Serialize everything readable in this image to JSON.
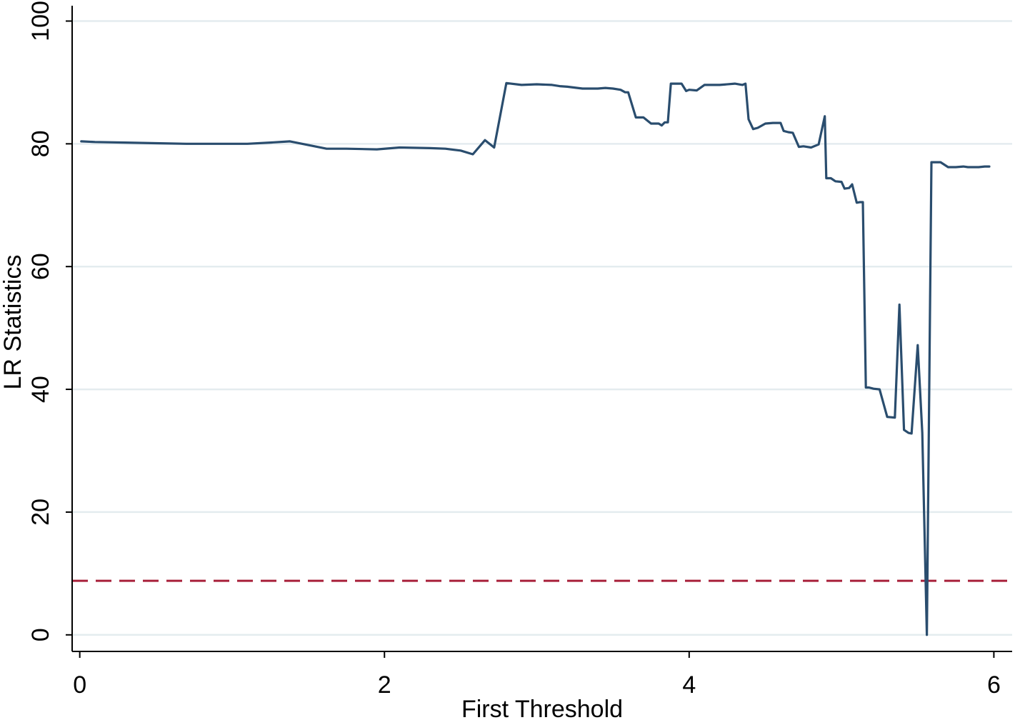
{
  "chart_data": {
    "type": "line",
    "title": "",
    "xlabel": "First Threshold",
    "ylabel": "LR Statistics",
    "xlim": [
      -0.05,
      6.12
    ],
    "ylim": [
      -2.7,
      102.5
    ],
    "xticks": [
      0,
      2,
      4,
      6
    ],
    "yticks": [
      0,
      20,
      40,
      60,
      80,
      100
    ],
    "grid": "horizontal",
    "legend": "none",
    "colors": {
      "series": "#2a4d6e",
      "reference": "#a8203a",
      "grid": "#e4ecef",
      "axis": "#000000"
    },
    "reference_line": {
      "y": 8.8,
      "style": "dashed"
    },
    "series": [
      {
        "x": [
          0.01,
          0.1,
          0.3,
          0.5,
          0.7,
          0.9,
          1.1,
          1.25,
          1.38,
          1.5,
          1.62,
          1.75,
          1.95,
          2.1,
          2.3,
          2.4,
          2.5,
          2.58,
          2.66,
          2.72,
          2.8,
          2.9,
          3.0,
          3.1,
          3.15,
          3.2,
          3.3,
          3.4,
          3.45,
          3.5,
          3.55,
          3.58,
          3.6,
          3.65,
          3.7,
          3.75,
          3.78,
          3.8,
          3.82,
          3.84,
          3.86,
          3.88,
          3.95,
          3.98,
          4.0,
          4.05,
          4.1,
          4.15,
          4.2,
          4.3,
          4.35,
          4.37,
          4.39,
          4.42,
          4.45,
          4.5,
          4.55,
          4.6,
          4.62,
          4.65,
          4.68,
          4.72,
          4.75,
          4.8,
          4.85,
          4.89,
          4.9,
          4.93,
          4.96,
          5.0,
          5.02,
          5.05,
          5.07,
          5.1,
          5.12,
          5.14,
          5.16,
          5.18,
          5.21,
          5.25,
          5.3,
          5.35,
          5.38,
          5.41,
          5.44,
          5.46,
          5.5,
          5.53,
          5.56,
          5.59,
          5.61,
          5.65,
          5.7,
          5.75,
          5.8,
          5.83,
          5.86,
          5.9,
          5.94,
          5.97
        ],
        "y": [
          80.4,
          80.3,
          80.2,
          80.1,
          80.0,
          80.0,
          80.0,
          80.2,
          80.4,
          79.8,
          79.2,
          79.2,
          79.1,
          79.4,
          79.3,
          79.2,
          78.9,
          78.3,
          80.6,
          79.4,
          89.9,
          89.6,
          89.7,
          89.6,
          89.4,
          89.3,
          89.0,
          89.0,
          89.1,
          89.0,
          88.8,
          88.4,
          88.4,
          84.3,
          84.3,
          83.3,
          83.3,
          83.3,
          83.0,
          83.5,
          83.5,
          89.8,
          89.8,
          88.6,
          88.8,
          88.7,
          89.6,
          89.6,
          89.6,
          89.8,
          89.6,
          89.8,
          84.0,
          82.4,
          82.6,
          83.3,
          83.4,
          83.4,
          82.1,
          81.9,
          81.8,
          79.5,
          79.6,
          79.4,
          79.9,
          84.5,
          74.4,
          74.4,
          73.9,
          73.8,
          72.7,
          72.8,
          73.4,
          70.4,
          70.5,
          70.5,
          40.3,
          40.3,
          40.1,
          40.0,
          35.5,
          35.4,
          53.8,
          33.4,
          32.9,
          32.8,
          47.2,
          32.9,
          0.0,
          77.0,
          77.0,
          77.0,
          76.2,
          76.2,
          76.3,
          76.2,
          76.2,
          76.2,
          76.3,
          76.3
        ]
      }
    ]
  }
}
